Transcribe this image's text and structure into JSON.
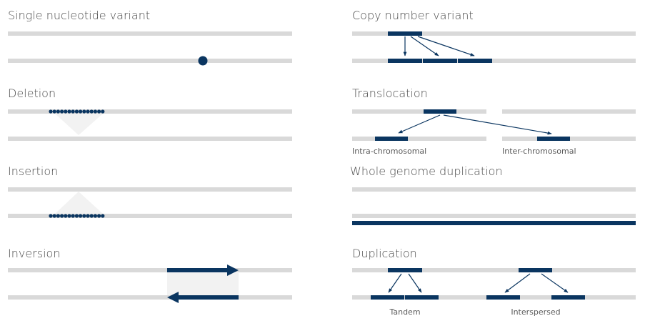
{
  "colors": {
    "chromosome": "#d9d9d9",
    "highlight": "#0a3560",
    "shade": "#f2f2f2",
    "title_text": "#4a4a4a",
    "caption_text": "#5a5a5a"
  },
  "panels": {
    "snv": {
      "title": "Single nucleotide variant"
    },
    "deletion": {
      "title": "Deletion"
    },
    "insertion": {
      "title": "Insertion"
    },
    "inversion": {
      "title": "Inversion"
    },
    "cnv": {
      "title": "Copy number variant"
    },
    "translocation": {
      "title": "Translocation",
      "intra_label": "Intra-chromosomal",
      "inter_label": "Inter-chromosomal"
    },
    "wgd": {
      "title": "Whole genome duplication"
    },
    "duplication": {
      "title": "Duplication",
      "tandem_label": "Tandem",
      "interspersed_label": "Interspersed"
    }
  }
}
